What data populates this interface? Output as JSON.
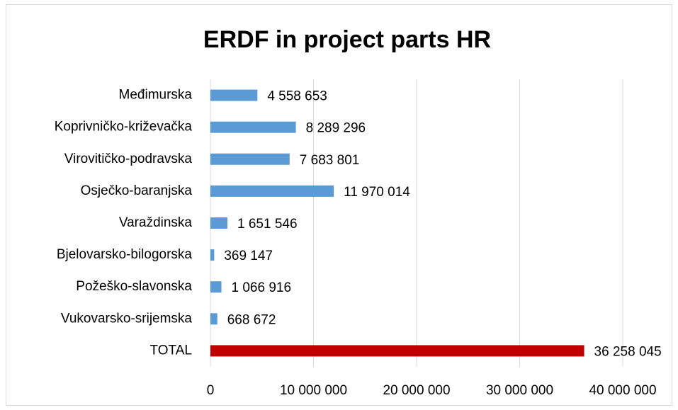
{
  "chart_data": {
    "type": "bar",
    "orientation": "horizontal",
    "title": "ERDF in project parts HR",
    "categories": [
      "Međimurska",
      "Koprivničko-križevačka",
      "Virovitičko-podravska",
      "Osječko-baranjska",
      "Varaždinska",
      "Bjelovarsko-bilogorska",
      "Požeško-slavonska",
      "Vukovarsko-srijemska",
      "TOTAL"
    ],
    "values": [
      4558653,
      8289296,
      7683801,
      11970014,
      1651546,
      369147,
      1066916,
      668672,
      36258045
    ],
    "value_labels": [
      "4 558 653",
      "8 289 296",
      "7 683 801",
      "11 970 014",
      "1 651 546",
      "369 147",
      "1 066 916",
      "668 672",
      "36 258 045"
    ],
    "colors": [
      "#5b9bd5",
      "#5b9bd5",
      "#5b9bd5",
      "#5b9bd5",
      "#5b9bd5",
      "#5b9bd5",
      "#5b9bd5",
      "#5b9bd5",
      "#c00000"
    ],
    "xlim": [
      0,
      40000000
    ],
    "xticks": [
      0,
      {
        "value": 10000000,
        "label": "10 000 000"
      },
      {
        "value": 20000000,
        "label": "20 000 000"
      },
      {
        "value": 30000000,
        "label": "30 000 000"
      },
      {
        "value": 40000000,
        "label": "40 000 000"
      }
    ],
    "grid": true
  }
}
